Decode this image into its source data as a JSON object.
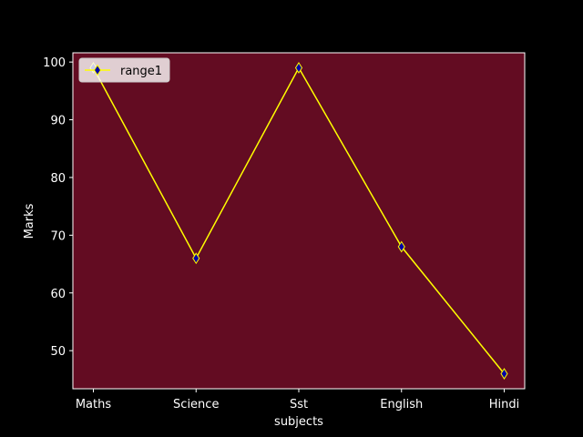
{
  "chart_data": {
    "type": "line",
    "categories": [
      "Maths",
      "Science",
      "Sst",
      "English",
      "Hindi"
    ],
    "series": [
      {
        "name": "range1",
        "values": [
          99,
          66,
          99,
          68,
          46
        ]
      }
    ],
    "xlabel": "subjects",
    "ylabel": "Marks",
    "ylim": [
      43.4,
      101.6
    ],
    "yticks": [
      50,
      60,
      70,
      80,
      90,
      100
    ],
    "grid": false,
    "legend": "upper left",
    "colors": {
      "figure_background": "#000000",
      "plot_background": "#630c22",
      "line": "#ffff00",
      "marker_fill": "#0000a8",
      "marker_edge": "#ffff00",
      "text": "#ffffff"
    },
    "marker": "diamond"
  }
}
